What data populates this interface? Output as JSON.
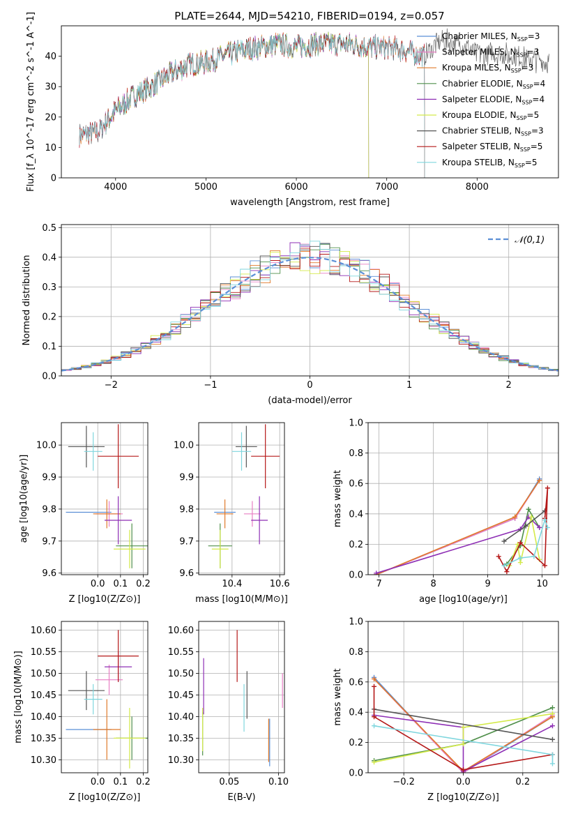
{
  "title": "PLATE=2644, MJD=54210, FIBERID=0194, z=0.057",
  "series_colors": {
    "Chabrier MILES": "#5b8fd6",
    "Salpeter MILES": "#e87fc4",
    "Kroupa MILES": "#e07a2a",
    "Chabrier ELODIE": "#4f8f4a",
    "Salpeter ELODIE": "#8e2fb5",
    "Kroupa ELODIE": "#d4ea4a",
    "Chabrier STELIB": "#555555",
    "Salpeter STELIB": "#b51818",
    "Kroupa STELIB": "#7fd6de"
  },
  "chart_data": [
    {
      "id": "spectrum",
      "type": "line",
      "title": "PLATE=2644, MJD=54210, FIBERID=0194, z=0.057",
      "xlabel": "wavelength [Angstrom, rest frame]",
      "ylabel": "Flux [f_λ 10^-17 erg cm^-2 s^-1 A^-1]",
      "xlim": [
        3400,
        8900
      ],
      "ylim": [
        0,
        50
      ],
      "xticks": [
        4000,
        5000,
        6000,
        7000,
        8000
      ],
      "yticks": [
        0,
        10,
        20,
        30,
        40
      ],
      "legend_position": "right",
      "legend": [
        {
          "label": "Chabrier MILES, N",
          "sub": "SSP",
          "suffix": "=3"
        },
        {
          "label": "Salpeter MILES, N",
          "sub": "SSP",
          "suffix": "=3"
        },
        {
          "label": "Kroupa MILES, N",
          "sub": "SSP",
          "suffix": "=3"
        },
        {
          "label": "Chabrier ELODIE, N",
          "sub": "SSP",
          "suffix": "=4"
        },
        {
          "label": "Salpeter ELODIE, N",
          "sub": "SSP",
          "suffix": "=4"
        },
        {
          "label": "Kroupa ELODIE, N",
          "sub": "SSP",
          "suffix": "=5"
        },
        {
          "label": "Chabrier STELIB, N",
          "sub": "SSP",
          "suffix": "=3"
        },
        {
          "label": "Salpeter STELIB, N",
          "sub": "SSP",
          "suffix": "=5"
        },
        {
          "label": "Kroupa STELIB, N",
          "sub": "SSP",
          "suffix": "=5"
        }
      ],
      "continuum": {
        "x": [
          3600,
          3800,
          4000,
          4200,
          4400,
          4600,
          4800,
          5000,
          5200,
          5400,
          5600,
          5800,
          6000,
          6200,
          6400,
          6600,
          6800,
          7000,
          7200,
          7400,
          7600,
          7800,
          8000,
          8200,
          8400,
          8600,
          8800
        ],
        "y": [
          14,
          15,
          22,
          27,
          30,
          34,
          37,
          38,
          40,
          42,
          43,
          44,
          43,
          44,
          44,
          44,
          43,
          43,
          42,
          40,
          45,
          44,
          41,
          41,
          40,
          39,
          38
        ]
      },
      "series_ranges": {
        "Chabrier MILES": [
          3600,
          7420
        ],
        "Salpeter MILES": [
          3600,
          7420
        ],
        "Kroupa MILES": [
          3600,
          7420
        ],
        "Chabrier ELODIE": [
          3900,
          6800
        ],
        "Salpeter ELODIE": [
          3900,
          6800
        ],
        "Kroupa ELODIE": [
          3900,
          6800
        ],
        "Chabrier STELIB": [
          3600,
          8800
        ],
        "Salpeter STELIB": [
          3600,
          7420
        ],
        "Kroupa STELIB": [
          3600,
          7420
        ]
      }
    },
    {
      "id": "residual-histogram",
      "type": "line",
      "xlabel": "(data-model)/error",
      "ylabel": "Normed distribution",
      "xlim": [
        -2.5,
        2.5
      ],
      "ylim": [
        0,
        0.51
      ],
      "xticks": [
        -2,
        -1,
        0,
        1,
        2
      ],
      "yticks": [
        0.0,
        0.1,
        0.2,
        0.3,
        0.4,
        0.5
      ],
      "legend": [
        {
          "label": "𝒩(0,1)",
          "style": "dashed"
        }
      ],
      "bin_width": 0.1
    },
    {
      "id": "age-vs-Z",
      "type": "scatter",
      "xlabel": "Z [log10(Z/Z⊙)]",
      "ylabel": "age  [log10(age/yr)]",
      "xlim": [
        -0.16,
        0.22
      ],
      "ylim": [
        9.595,
        10.07
      ],
      "xticks": [
        0.0,
        0.1,
        0.2
      ],
      "yticks": [
        9.6,
        9.7,
        9.8,
        9.9,
        10.0
      ],
      "points": [
        {
          "series": "Chabrier MILES",
          "x": -0.04,
          "y": 9.79,
          "xerr": 0.1,
          "yerr": 0.0
        },
        {
          "series": "Salpeter MILES",
          "x": 0.05,
          "y": 9.785,
          "xerr": 0.06,
          "yerr": 0.04
        },
        {
          "series": "Kroupa MILES",
          "x": 0.04,
          "y": 9.785,
          "xerr": 0.06,
          "yerr": 0.045
        },
        {
          "series": "Chabrier ELODIE",
          "x": 0.15,
          "y": 9.685,
          "xerr": 0.07,
          "yerr": 0.07
        },
        {
          "series": "Salpeter ELODIE",
          "x": 0.09,
          "y": 9.765,
          "xerr": 0.06,
          "yerr": 0.075
        },
        {
          "series": "Kroupa ELODIE",
          "x": 0.14,
          "y": 9.675,
          "xerr": 0.07,
          "yerr": 0.06
        },
        {
          "series": "Chabrier STELIB",
          "x": -0.05,
          "y": 9.995,
          "xerr": 0.08,
          "yerr": 0.065
        },
        {
          "series": "Salpeter STELIB",
          "x": 0.09,
          "y": 9.965,
          "xerr": 0.09,
          "yerr": 0.1
        },
        {
          "series": "Kroupa STELIB",
          "x": -0.02,
          "y": 9.98,
          "xerr": 0.04,
          "yerr": 0.06
        }
      ]
    },
    {
      "id": "age-vs-mass",
      "type": "scatter",
      "xlabel": "mass [log10(M/M⊙)]",
      "xlim": [
        10.26,
        10.62
      ],
      "ylim": [
        9.595,
        10.07
      ],
      "xticks": [
        10.4,
        10.6
      ],
      "yticks": [
        9.6,
        9.7,
        9.8,
        9.9,
        10.0
      ],
      "points": [
        {
          "series": "Chabrier MILES",
          "x": 10.37,
          "y": 9.79,
          "xerr": 0.045,
          "yerr": 0.0
        },
        {
          "series": "Salpeter MILES",
          "x": 10.485,
          "y": 9.785,
          "xerr": 0.035,
          "yerr": 0.04
        },
        {
          "series": "Kroupa MILES",
          "x": 10.37,
          "y": 9.785,
          "xerr": 0.035,
          "yerr": 0.045
        },
        {
          "series": "Chabrier ELODIE",
          "x": 10.35,
          "y": 9.685,
          "xerr": 0.05,
          "yerr": 0.07
        },
        {
          "series": "Salpeter ELODIE",
          "x": 10.515,
          "y": 9.765,
          "xerr": 0.035,
          "yerr": 0.075
        },
        {
          "series": "Kroupa ELODIE",
          "x": 10.35,
          "y": 9.675,
          "xerr": 0.035,
          "yerr": 0.06
        },
        {
          "series": "Chabrier STELIB",
          "x": 10.46,
          "y": 9.995,
          "xerr": 0.045,
          "yerr": 0.065
        },
        {
          "series": "Salpeter STELIB",
          "x": 10.54,
          "y": 9.965,
          "xerr": 0.06,
          "yerr": 0.1
        },
        {
          "series": "Kroupa STELIB",
          "x": 10.44,
          "y": 9.98,
          "xerr": 0.04,
          "yerr": 0.06
        }
      ]
    },
    {
      "id": "mass-weight-vs-age",
      "type": "line",
      "xlabel": "age  [log10(age/yr)]",
      "ylabel": "mass weight",
      "xlim": [
        6.8,
        10.3
      ],
      "ylim": [
        0,
        1
      ],
      "xticks": [
        7,
        8,
        9,
        10
      ],
      "yticks": [
        0.0,
        0.2,
        0.4,
        0.6,
        0.8,
        1.0
      ],
      "series": [
        {
          "name": "Chabrier MILES",
          "x": [
            6.95,
            9.5,
            9.95
          ],
          "y": [
            0.0,
            0.37,
            0.63
          ]
        },
        {
          "name": "Salpeter MILES",
          "x": [
            6.95,
            9.5,
            9.95
          ],
          "y": [
            0.0,
            0.37,
            0.62
          ]
        },
        {
          "name": "Kroupa MILES",
          "x": [
            6.95,
            9.5,
            9.95
          ],
          "y": [
            0.0,
            0.38,
            0.62
          ]
        },
        {
          "name": "Chabrier ELODIE",
          "x": [
            9.35,
            9.6,
            9.75,
            9.95
          ],
          "y": [
            0.07,
            0.19,
            0.43,
            0.31
          ]
        },
        {
          "name": "Salpeter ELODIE",
          "x": [
            6.95,
            9.6,
            9.75,
            9.95
          ],
          "y": [
            0.01,
            0.3,
            0.38,
            0.31
          ]
        },
        {
          "name": "Kroupa ELODIE",
          "x": [
            9.4,
            9.55,
            9.6,
            9.8,
            9.95
          ],
          "y": [
            0.06,
            0.2,
            0.08,
            0.38,
            0.1
          ]
        },
        {
          "name": "Chabrier STELIB",
          "x": [
            9.3,
            9.7,
            10.05
          ],
          "y": [
            0.22,
            0.32,
            0.42
          ]
        },
        {
          "name": "Salpeter STELIB",
          "x": [
            9.2,
            9.35,
            9.6,
            10.05,
            10.1,
            10.05
          ],
          "y": [
            0.12,
            0.02,
            0.21,
            0.06,
            0.57,
            0.37
          ]
        },
        {
          "name": "Kroupa STELIB",
          "x": [
            9.3,
            9.6,
            9.85,
            10.05,
            10.1
          ],
          "y": [
            0.06,
            0.11,
            0.12,
            0.36,
            0.31
          ]
        }
      ]
    },
    {
      "id": "mass-vs-Z",
      "type": "scatter",
      "xlabel": "Z [log10(Z/Z⊙)]",
      "ylabel": "mass [log10(M/M⊙)]",
      "xlim": [
        -0.16,
        0.22
      ],
      "ylim": [
        10.27,
        10.62
      ],
      "xticks": [
        0.0,
        0.1,
        0.2
      ],
      "yticks": [
        10.3,
        10.35,
        10.4,
        10.45,
        10.5,
        10.55,
        10.6
      ],
      "points": [
        {
          "series": "Chabrier MILES",
          "x": -0.04,
          "y": 10.37,
          "xerr": 0.1,
          "yerr": 0.0
        },
        {
          "series": "Salpeter MILES",
          "x": 0.05,
          "y": 10.485,
          "xerr": 0.06,
          "yerr": 0.035
        },
        {
          "series": "Kroupa MILES",
          "x": 0.04,
          "y": 10.37,
          "xerr": 0.06,
          "yerr": 0.07
        },
        {
          "series": "Chabrier ELODIE",
          "x": 0.15,
          "y": 10.35,
          "xerr": 0.07,
          "yerr": 0.05
        },
        {
          "series": "Salpeter ELODIE",
          "x": 0.09,
          "y": 10.515,
          "xerr": 0.06,
          "yerr": 0.035
        },
        {
          "series": "Kroupa ELODIE",
          "x": 0.14,
          "y": 10.35,
          "xerr": 0.07,
          "yerr": 0.07
        },
        {
          "series": "Chabrier STELIB",
          "x": -0.05,
          "y": 10.46,
          "xerr": 0.08,
          "yerr": 0.045
        },
        {
          "series": "Salpeter STELIB",
          "x": 0.09,
          "y": 10.54,
          "xerr": 0.09,
          "yerr": 0.06
        },
        {
          "series": "Kroupa STELIB",
          "x": -0.02,
          "y": 10.44,
          "xerr": 0.04,
          "yerr": 0.035
        }
      ]
    },
    {
      "id": "mass-vs-EBV",
      "type": "scatter",
      "xlabel": "E(B-V)",
      "xlim": [
        0.019,
        0.106
      ],
      "ylim": [
        10.27,
        10.62
      ],
      "xticks": [
        0.05,
        0.1
      ],
      "yticks": [
        10.3,
        10.35,
        10.4,
        10.45,
        10.5,
        10.55,
        10.6
      ],
      "points": [
        {
          "series": "Chabrier MILES",
          "x": 0.091,
          "y": 10.34,
          "xerr": 0,
          "yerr": 0.055
        },
        {
          "series": "Salpeter MILES",
          "x": 0.104,
          "y": 10.46,
          "xerr": 0,
          "yerr": 0.04
        },
        {
          "series": "Kroupa MILES",
          "x": 0.09,
          "y": 10.345,
          "xerr": 0,
          "yerr": 0.05
        },
        {
          "series": "Chabrier ELODIE",
          "x": 0.023,
          "y": 10.36,
          "xerr": 0,
          "yerr": 0.05
        },
        {
          "series": "Salpeter ELODIE",
          "x": 0.024,
          "y": 10.47,
          "xerr": 0,
          "yerr": 0.065
        },
        {
          "series": "Kroupa ELODIE",
          "x": 0.023,
          "y": 10.37,
          "xerr": 0,
          "yerr": 0.05
        },
        {
          "series": "Chabrier STELIB",
          "x": 0.068,
          "y": 10.45,
          "xerr": 0,
          "yerr": 0.055
        },
        {
          "series": "Salpeter STELIB",
          "x": 0.058,
          "y": 10.54,
          "xerr": 0,
          "yerr": 0.06
        },
        {
          "series": "Kroupa STELIB",
          "x": 0.065,
          "y": 10.42,
          "xerr": 0,
          "yerr": 0.055
        }
      ]
    },
    {
      "id": "mass-weight-vs-Z",
      "type": "line",
      "xlabel": "Z [log10(Z/Z⊙)]",
      "ylabel": "mass weight",
      "xlim": [
        -0.32,
        0.32
      ],
      "ylim": [
        0,
        1
      ],
      "xticks": [
        -0.2,
        0.0,
        0.2
      ],
      "yticks": [
        0.0,
        0.2,
        0.4,
        0.6,
        0.8,
        1.0
      ],
      "series": [
        {
          "name": "Chabrier MILES",
          "x": [
            -0.3,
            0.0,
            0.3
          ],
          "y": [
            0.63,
            0.0,
            0.37
          ]
        },
        {
          "name": "Salpeter MILES",
          "x": [
            -0.3,
            0.0,
            0.3
          ],
          "y": [
            0.62,
            0.0,
            0.38
          ]
        },
        {
          "name": "Kroupa MILES",
          "x": [
            -0.3,
            0.0,
            0.3
          ],
          "y": [
            0.62,
            0.01,
            0.37
          ]
        },
        {
          "name": "Chabrier ELODIE",
          "x": [
            -0.3,
            0.0,
            0.3
          ],
          "y": [
            0.08,
            0.19,
            0.43
          ]
        },
        {
          "name": "Salpeter ELODIE",
          "x": [
            -0.3,
            0.0,
            0.0,
            0.3
          ],
          "y": [
            0.38,
            0.3,
            0.01,
            0.31
          ]
        },
        {
          "name": "Kroupa ELODIE",
          "x": [
            -0.3,
            0.0,
            0.0,
            0.3
          ],
          "y": [
            0.07,
            0.19,
            0.3,
            0.39
          ]
        },
        {
          "name": "Chabrier STELIB",
          "x": [
            -0.3,
            0.3
          ],
          "y": [
            0.42,
            0.22
          ]
        },
        {
          "name": "Salpeter STELIB",
          "x": [
            -0.3,
            -0.3,
            0.0,
            0.3
          ],
          "y": [
            0.57,
            0.37,
            0.02,
            0.12
          ]
        },
        {
          "name": "Kroupa STELIB",
          "x": [
            -0.3,
            0.3,
            0.3
          ],
          "y": [
            0.31,
            0.12,
            0.06
          ]
        }
      ]
    }
  ]
}
